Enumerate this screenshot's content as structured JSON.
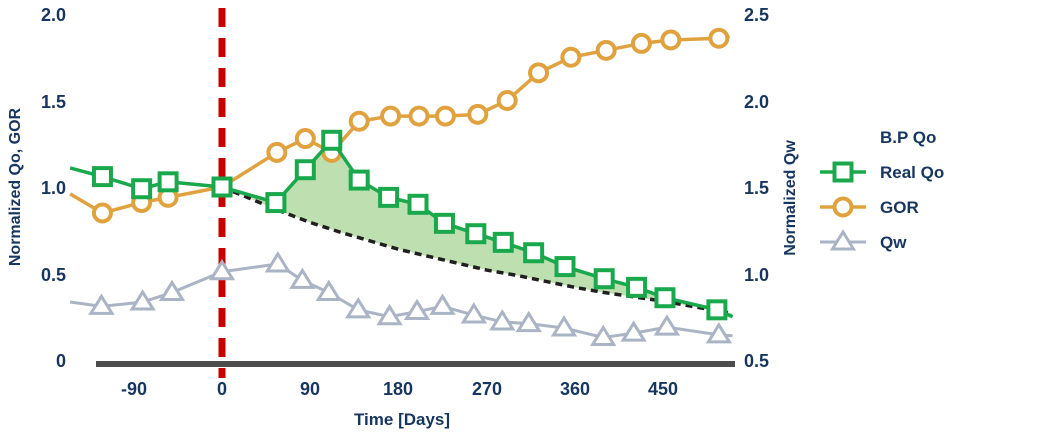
{
  "colors": {
    "navy": "#17365f",
    "green": "#1aa84c",
    "orange": "#e0a23e",
    "gray_blue": "#aab4c4",
    "bp_black": "#1f1f1f",
    "fill_green": "#a8d494",
    "red": "#c40000",
    "baseline_gray": "#4d4d4d"
  },
  "legend": {
    "items": [
      {
        "label": "B.P Qo",
        "marker": "none"
      },
      {
        "label": "Real Qo",
        "marker": "square"
      },
      {
        "label": "GOR",
        "marker": "circle"
      },
      {
        "label": "Qw",
        "marker": "triangle"
      }
    ]
  },
  "chart_data": {
    "type": "line",
    "title": "",
    "xlabel": "Time [Days]",
    "ylabel_left": "Normalized Qo, GOR",
    "ylabel_right": "Normalized Qw",
    "x_tick_labels": [
      "-90",
      "0",
      "90",
      "180",
      "270",
      "360",
      "450"
    ],
    "x_ticks": [
      -90,
      0,
      90,
      180,
      270,
      360,
      450
    ],
    "y_left_tick_labels": [
      "0",
      "0.5",
      "1.0",
      "1.5",
      "2.0"
    ],
    "y_left_ticks": [
      0,
      0.5,
      1.0,
      1.5,
      2.0
    ],
    "y_right_tick_labels": [
      "0.5",
      "1.0",
      "1.5",
      "2.0",
      "2.5"
    ],
    "y_right_ticks": [
      0.5,
      1.0,
      1.5,
      2.0,
      2.5
    ],
    "x_range_days": [
      -158,
      528
    ],
    "y_left_range": [
      0,
      2.0
    ],
    "y_right_range": [
      0.5,
      2.5
    ],
    "grid": false,
    "legend_position": "right",
    "event_line_x": 0,
    "fill_between": {
      "upper": "Real Qo",
      "lower": "B.P Qo",
      "color": "#a8d494",
      "opacity": 0.75
    },
    "series": [
      {
        "name": "B.P Qo",
        "axis": "left",
        "color": "#1f1f1f",
        "marker": "none",
        "width": 3.5,
        "dash": "7 5",
        "z": 1,
        "points": [
          [
            0,
            1.0
          ],
          [
            30,
            0.93
          ],
          [
            60,
            0.86
          ],
          [
            90,
            0.795
          ],
          [
            120,
            0.74
          ],
          [
            150,
            0.69
          ],
          [
            180,
            0.64
          ],
          [
            210,
            0.6
          ],
          [
            240,
            0.56
          ],
          [
            270,
            0.52
          ],
          [
            300,
            0.49
          ],
          [
            330,
            0.455
          ],
          [
            360,
            0.42
          ],
          [
            390,
            0.39
          ],
          [
            420,
            0.365
          ],
          [
            450,
            0.34
          ],
          [
            480,
            0.31
          ],
          [
            520,
            0.27
          ]
        ]
      },
      {
        "name": "Real Qo",
        "axis": "left",
        "color": "#1aa84c",
        "marker": "square",
        "width": 3.5,
        "z": 4,
        "points": [
          [
            -155,
            1.11,
            0
          ],
          [
            -122,
            1.06
          ],
          [
            -82,
            0.99
          ],
          [
            -55,
            1.03
          ],
          [
            0,
            1.0
          ],
          [
            55,
            0.91
          ],
          [
            85,
            1.1
          ],
          [
            112,
            1.27
          ],
          [
            140,
            1.04
          ],
          [
            170,
            0.94
          ],
          [
            200,
            0.9
          ],
          [
            227,
            0.79
          ],
          [
            259,
            0.73
          ],
          [
            287,
            0.68
          ],
          [
            318,
            0.62
          ],
          [
            350,
            0.54
          ],
          [
            390,
            0.47
          ],
          [
            423,
            0.42
          ],
          [
            452,
            0.36
          ],
          [
            505,
            0.29
          ],
          [
            521,
            0.25,
            0
          ]
        ]
      },
      {
        "name": "GOR",
        "axis": "left",
        "color": "#e0a23e",
        "marker": "circle",
        "width": 3.5,
        "z": 3,
        "points": [
          [
            -155,
            0.96,
            0
          ],
          [
            -122,
            0.85
          ],
          [
            -82,
            0.91
          ],
          [
            -55,
            0.94
          ],
          [
            0,
            1.0,
            0
          ],
          [
            56,
            1.2
          ],
          [
            85,
            1.28
          ],
          [
            112,
            1.2
          ],
          [
            140,
            1.38
          ],
          [
            172,
            1.41
          ],
          [
            201,
            1.41
          ],
          [
            228,
            1.41
          ],
          [
            261,
            1.42
          ],
          [
            291,
            1.5
          ],
          [
            323,
            1.66
          ],
          [
            356,
            1.75
          ],
          [
            392,
            1.79
          ],
          [
            428,
            1.83
          ],
          [
            458,
            1.85
          ],
          [
            507,
            1.86
          ],
          [
            518,
            1.87,
            0
          ]
        ]
      },
      {
        "name": "Qw",
        "axis": "right",
        "color": "#aab4c4",
        "marker": "triangle",
        "width": 3,
        "z": 2,
        "points": [
          [
            -155,
            0.835,
            0
          ],
          [
            -123,
            0.81
          ],
          [
            -81,
            0.835
          ],
          [
            -51,
            0.89
          ],
          [
            0,
            1.01
          ],
          [
            57,
            1.055
          ],
          [
            82,
            0.96
          ],
          [
            109,
            0.89
          ],
          [
            139,
            0.79
          ],
          [
            171,
            0.75
          ],
          [
            199,
            0.78
          ],
          [
            225,
            0.81
          ],
          [
            257,
            0.76
          ],
          [
            286,
            0.72
          ],
          [
            313,
            0.71
          ],
          [
            349,
            0.685
          ],
          [
            389,
            0.63
          ],
          [
            420,
            0.655
          ],
          [
            454,
            0.69
          ],
          [
            507,
            0.645
          ],
          [
            521,
            0.64,
            0
          ]
        ]
      }
    ]
  }
}
